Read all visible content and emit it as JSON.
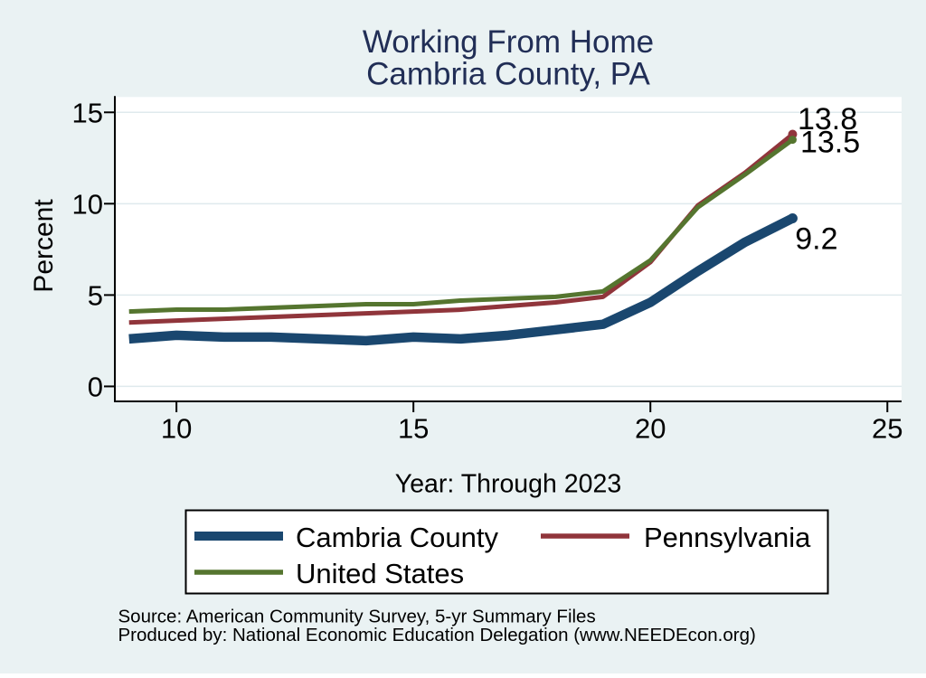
{
  "chart_data": {
    "type": "line",
    "title_lines": [
      "Working From Home",
      "Cambria County, PA"
    ],
    "xlabel": "Year: Through 2023",
    "ylabel": "Percent",
    "x": [
      9,
      10,
      11,
      12,
      13,
      14,
      15,
      16,
      17,
      18,
      19,
      20,
      21,
      22,
      23
    ],
    "xticks": {
      "values": [
        10,
        15,
        20,
        25
      ],
      "labels": [
        "10",
        "15",
        "20",
        "25"
      ]
    },
    "yticks": {
      "values": [
        0,
        5,
        10,
        15
      ],
      "labels": [
        "0",
        "5",
        "10",
        "15"
      ]
    },
    "xlim": [
      8.7,
      25.3
    ],
    "ylim": [
      -0.82,
      15.84
    ],
    "grid": "horizontal",
    "legend_position": "bottom",
    "series": [
      {
        "name": "Cambria County",
        "color": "#1A476F",
        "width": 10.5,
        "values": [
          2.6,
          2.8,
          2.7,
          2.7,
          2.6,
          2.5,
          2.7,
          2.6,
          2.8,
          3.1,
          3.4,
          4.6,
          6.3,
          7.9,
          9.2
        ],
        "end_label": "9.2"
      },
      {
        "name": "Pennsylvania",
        "color": "#90353B",
        "width": 5,
        "values": [
          3.5,
          3.6,
          3.7,
          3.8,
          3.9,
          4.0,
          4.1,
          4.2,
          4.4,
          4.6,
          4.9,
          6.8,
          9.9,
          11.7,
          13.8
        ],
        "end_label": "13.8"
      },
      {
        "name": "United States",
        "color": "#55752F",
        "width": 5,
        "values": [
          4.1,
          4.2,
          4.2,
          4.3,
          4.4,
          4.5,
          4.5,
          4.7,
          4.8,
          4.9,
          5.2,
          6.9,
          9.8,
          11.6,
          13.5
        ],
        "end_label": "13.5"
      }
    ],
    "notes": [
      "Source: American Community Survey, 5-yr Summary Files",
      "Produced by: National Economic Education Delegation (www.NEEDEcon.org)"
    ]
  },
  "colors": {
    "background": "#EAF2F3",
    "plot_background": "#FFFFFF",
    "grid": "#DFEAED",
    "axis": "#000000",
    "title": "#212E56",
    "text": "#000000",
    "legend_background": "#FFFFFF",
    "legend_border": "#000000"
  }
}
